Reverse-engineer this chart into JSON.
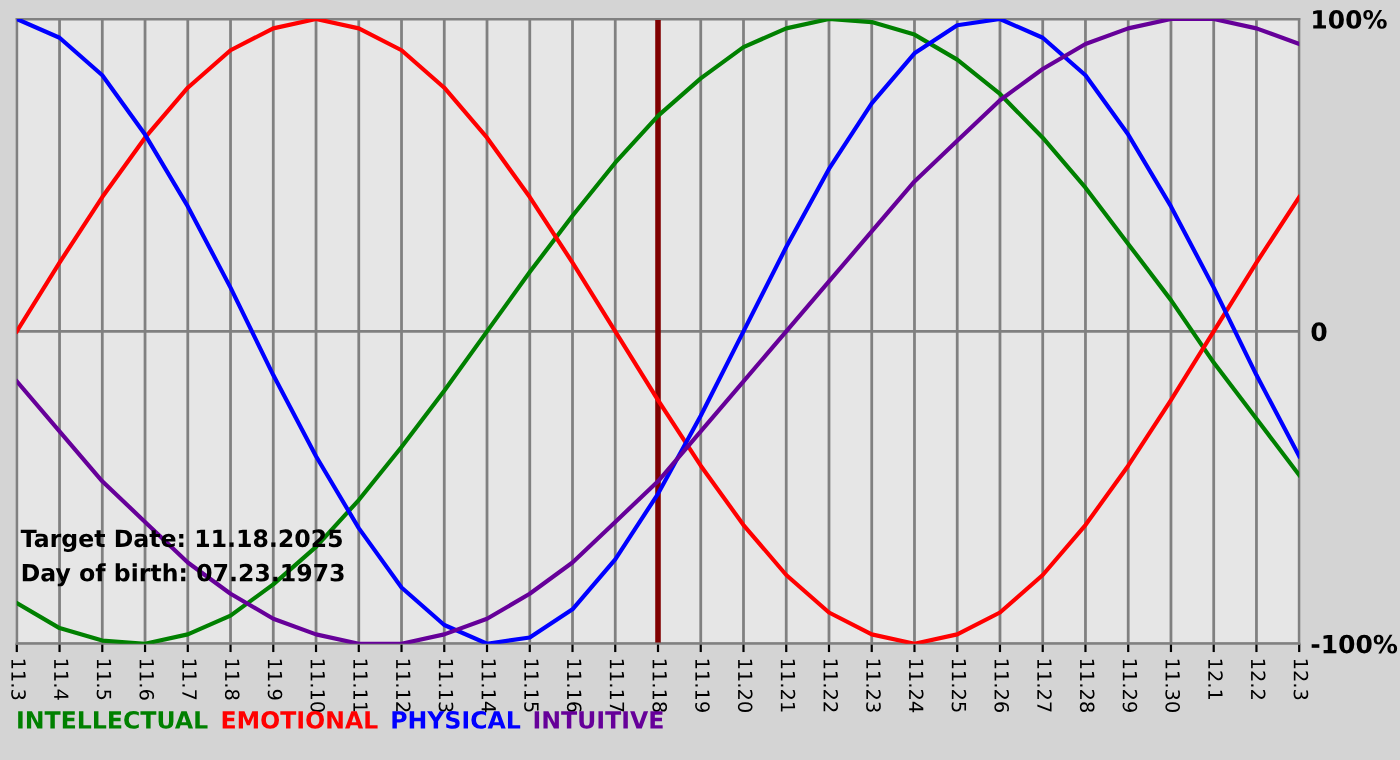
{
  "chart_data": {
    "type": "line",
    "categories": [
      "11.3",
      "11.4",
      "11.5",
      "11.6",
      "11.7",
      "11.8",
      "11.9",
      "11.10",
      "11.11",
      "11.12",
      "11.13",
      "11.14",
      "11.15",
      "11.16",
      "11.17",
      "11.18",
      "11.19",
      "11.20",
      "11.21",
      "11.22",
      "11.23",
      "11.24",
      "11.25",
      "11.26",
      "11.27",
      "11.28",
      "11.29",
      "11.30",
      "12.1",
      "12.2",
      "12.3"
    ],
    "series": [
      {
        "name": "INTELLECTUAL",
        "color": "#008000",
        "values": [
          -87,
          -95,
          -99,
          -100,
          -97,
          -91,
          -81,
          -69,
          -54,
          -37,
          -19,
          0,
          19,
          37,
          54,
          69,
          81,
          91,
          97,
          100,
          99,
          95,
          87,
          76,
          62,
          46,
          28,
          10,
          -10,
          -28,
          -46
        ]
      },
      {
        "name": "EMOTIONAL",
        "color": "#ff0000",
        "values": [
          0,
          22,
          43,
          62,
          78,
          90,
          97,
          100,
          97,
          90,
          78,
          62,
          43,
          22,
          0,
          -22,
          -43,
          -62,
          -78,
          -90,
          -97,
          -100,
          -97,
          -90,
          -78,
          -62,
          -43,
          -22,
          0,
          22,
          43
        ]
      },
      {
        "name": "PHYSICAL",
        "color": "#0000ff",
        "values": [
          100,
          94,
          82,
          63,
          40,
          14,
          -14,
          -40,
          -63,
          -82,
          -94,
          -100,
          -98,
          -89,
          -73,
          -52,
          -27,
          0,
          27,
          52,
          73,
          89,
          98,
          100,
          94,
          82,
          63,
          40,
          14,
          -14,
          -40
        ]
      },
      {
        "name": "INTUITIVE",
        "color": "#660099",
        "values": [
          -16,
          -32,
          -48,
          -61,
          -74,
          -84,
          -92,
          -97,
          -100,
          -100,
          -97,
          -92,
          -84,
          -74,
          -61,
          -48,
          -32,
          -16,
          0,
          16,
          32,
          48,
          61,
          74,
          84,
          92,
          97,
          100,
          100,
          97,
          92
        ]
      }
    ],
    "ylim": [
      -100,
      100
    ],
    "yticks": [
      {
        "value": 100,
        "label": "100%"
      },
      0,
      {
        "value": -100,
        "label": "-100%"
      }
    ],
    "grid": true,
    "legend": "bottom left",
    "ref_lines": [
      {
        "axis": "x",
        "value": "11.18",
        "color": "#800000"
      }
    ],
    "annotations": [
      "Target Date: 11.18.2025",
      "Day of birth: 07.23.1973"
    ]
  }
}
